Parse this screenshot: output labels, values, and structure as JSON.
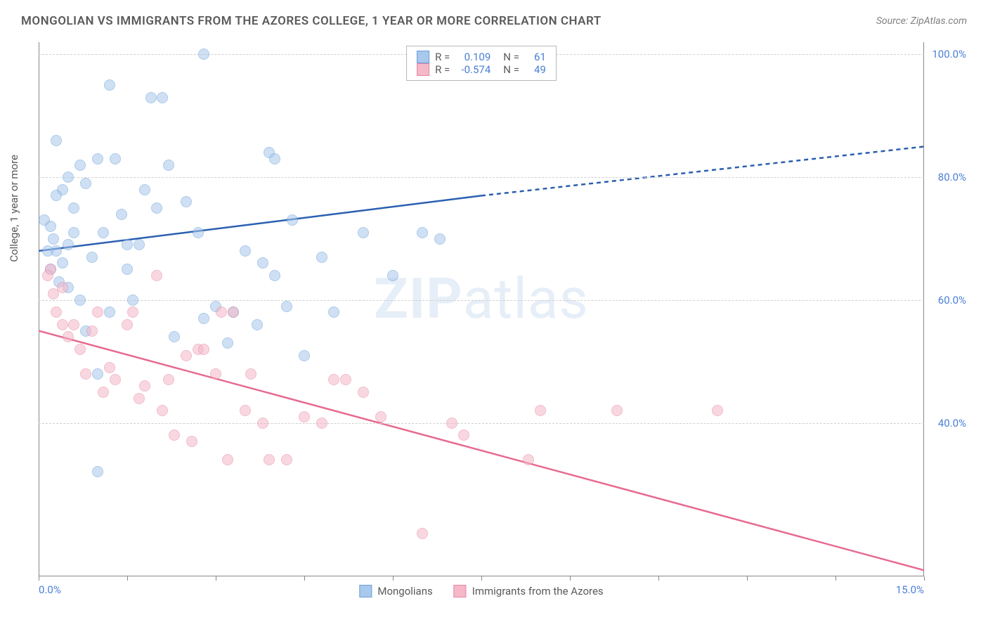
{
  "title": "MONGOLIAN VS IMMIGRANTS FROM THE AZORES COLLEGE, 1 YEAR OR MORE CORRELATION CHART",
  "source": "Source: ZipAtlas.com",
  "ylabel": "College, 1 year or more",
  "watermark_bold": "ZIP",
  "watermark_rest": "atlas",
  "chart": {
    "type": "scatter",
    "xlim": [
      0,
      15
    ],
    "ylim": [
      15,
      102
    ],
    "xticks": [
      0,
      15
    ],
    "xtick_labels": [
      "0.0%",
      "15.0%"
    ],
    "yticks": [
      40,
      60,
      80,
      100
    ],
    "ytick_labels": [
      "40.0%",
      "60.0%",
      "80.0%",
      "100.0%"
    ],
    "xtick_minors": [
      0,
      1.5,
      3,
      4.5,
      6,
      7.5,
      9,
      10.5,
      12,
      13.5,
      15
    ],
    "grid_color": "#d0d0d0",
    "background": "#ffffff",
    "marker_radius": 8,
    "marker_opacity": 0.55,
    "series": [
      {
        "name": "Mongolians",
        "fill": "#a8c8ec",
        "stroke": "#6a9fd8",
        "r_value": "0.109",
        "n_value": "61",
        "trend": {
          "color": "#2b5fb0",
          "width": 2.5,
          "x1": 0,
          "y1": 68,
          "x2": 7.5,
          "y2": 77,
          "x3": 15,
          "y3": 85
        },
        "points": [
          [
            0.2,
            65
          ],
          [
            0.3,
            68
          ],
          [
            0.25,
            70
          ],
          [
            0.35,
            63
          ],
          [
            0.5,
            62
          ],
          [
            0.4,
            66
          ],
          [
            0.6,
            71
          ],
          [
            0.7,
            60
          ],
          [
            0.3,
            86
          ],
          [
            0.5,
            80
          ],
          [
            0.8,
            79
          ],
          [
            0.6,
            75
          ],
          [
            1.0,
            83
          ],
          [
            1.2,
            95
          ],
          [
            1.3,
            83
          ],
          [
            1.5,
            69
          ],
          [
            1.4,
            74
          ],
          [
            1.0,
            48
          ],
          [
            1.2,
            58
          ],
          [
            0.8,
            55
          ],
          [
            0.9,
            67
          ],
          [
            1.1,
            71
          ],
          [
            1.5,
            65
          ],
          [
            1.7,
            69
          ],
          [
            1.8,
            78
          ],
          [
            1.9,
            93
          ],
          [
            2.1,
            93
          ],
          [
            2.2,
            82
          ],
          [
            2.5,
            76
          ],
          [
            2.7,
            71
          ],
          [
            2.8,
            57
          ],
          [
            2.8,
            100
          ],
          [
            3.0,
            59
          ],
          [
            3.2,
            53
          ],
          [
            3.3,
            58
          ],
          [
            3.5,
            68
          ],
          [
            3.7,
            56
          ],
          [
            3.8,
            66
          ],
          [
            3.9,
            84
          ],
          [
            4.0,
            83
          ],
          [
            4.0,
            64
          ],
          [
            4.2,
            59
          ],
          [
            4.3,
            73
          ],
          [
            4.5,
            51
          ],
          [
            4.8,
            67
          ],
          [
            5.0,
            58
          ],
          [
            5.5,
            71
          ],
          [
            6.0,
            64
          ],
          [
            6.5,
            71
          ],
          [
            6.8,
            70
          ],
          [
            1.0,
            32
          ],
          [
            0.1,
            73
          ],
          [
            0.2,
            72
          ],
          [
            0.15,
            68
          ],
          [
            0.5,
            69
          ],
          [
            0.4,
            78
          ],
          [
            0.3,
            77
          ],
          [
            0.7,
            82
          ],
          [
            2.0,
            75
          ],
          [
            1.6,
            60
          ],
          [
            2.3,
            54
          ]
        ]
      },
      {
        "name": "Immigrants from the Azores",
        "fill": "#f5b8c8",
        "stroke": "#e588a3",
        "r_value": "-0.574",
        "n_value": "49",
        "trend": {
          "color": "#e76a8f",
          "width": 2.5,
          "x1": 0,
          "y1": 55,
          "x2": 15,
          "y2": 16
        },
        "points": [
          [
            0.2,
            65
          ],
          [
            0.3,
            58
          ],
          [
            0.4,
            56
          ],
          [
            0.5,
            54
          ],
          [
            0.6,
            56
          ],
          [
            0.7,
            52
          ],
          [
            0.8,
            48
          ],
          [
            0.9,
            55
          ],
          [
            1.0,
            58
          ],
          [
            1.1,
            45
          ],
          [
            1.2,
            49
          ],
          [
            1.3,
            47
          ],
          [
            1.5,
            56
          ],
          [
            1.6,
            58
          ],
          [
            1.7,
            44
          ],
          [
            1.8,
            46
          ],
          [
            2.0,
            64
          ],
          [
            2.1,
            42
          ],
          [
            2.2,
            47
          ],
          [
            2.3,
            38
          ],
          [
            2.5,
            51
          ],
          [
            2.6,
            37
          ],
          [
            2.7,
            52
          ],
          [
            2.8,
            52
          ],
          [
            3.0,
            48
          ],
          [
            3.1,
            58
          ],
          [
            3.2,
            34
          ],
          [
            3.3,
            58
          ],
          [
            3.5,
            42
          ],
          [
            3.6,
            48
          ],
          [
            3.8,
            40
          ],
          [
            3.9,
            34
          ],
          [
            4.2,
            34
          ],
          [
            4.5,
            41
          ],
          [
            4.8,
            40
          ],
          [
            5.0,
            47
          ],
          [
            5.2,
            47
          ],
          [
            5.5,
            45
          ],
          [
            5.8,
            41
          ],
          [
            6.5,
            22
          ],
          [
            7.0,
            40
          ],
          [
            7.2,
            38
          ],
          [
            8.3,
            34
          ],
          [
            8.5,
            42
          ],
          [
            9.8,
            42
          ],
          [
            11.5,
            42
          ],
          [
            0.15,
            64
          ],
          [
            0.25,
            61
          ],
          [
            0.4,
            62
          ]
        ]
      }
    ],
    "legend_top": {
      "r_label": "R =",
      "n_label": "N ="
    },
    "legend_bottom": [
      "Mongolians",
      "Immigrants from the Azores"
    ]
  }
}
